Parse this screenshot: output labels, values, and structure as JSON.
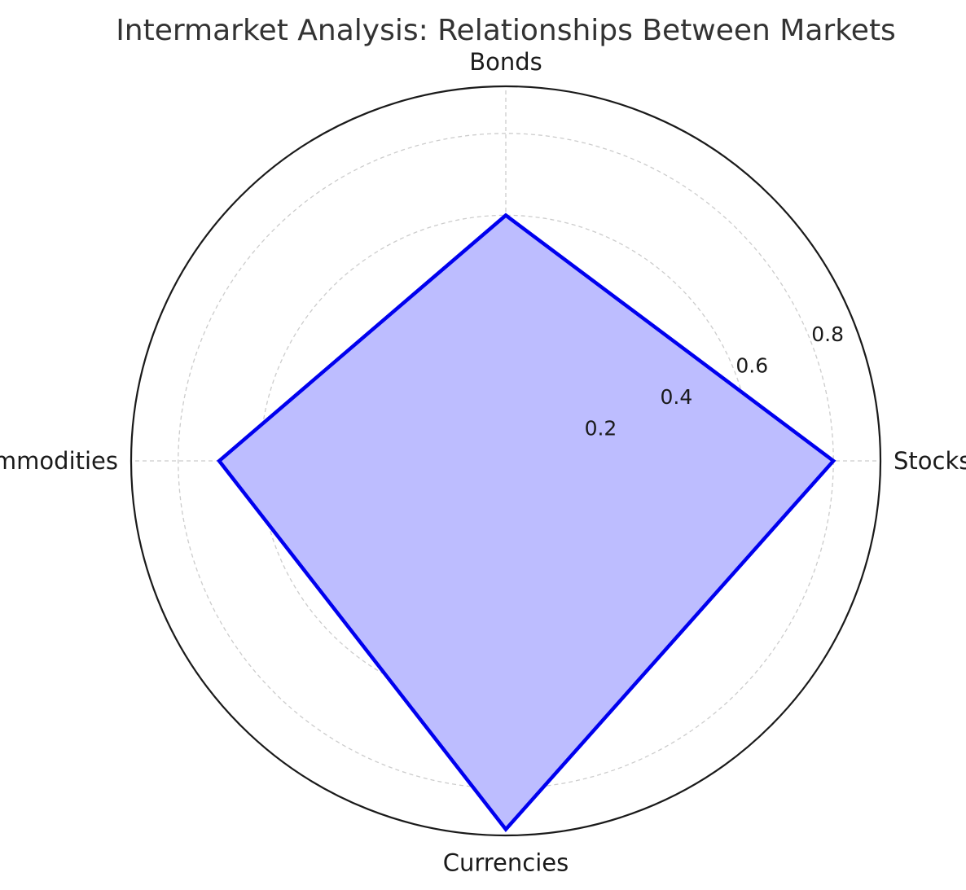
{
  "chart_data": {
    "type": "radar",
    "title": "Intermarket Analysis: Relationships Between Markets",
    "categories": [
      "Stocks",
      "Bonds",
      "Commodities",
      "Currencies"
    ],
    "series": [
      {
        "values": [
          0.8,
          0.6,
          0.7,
          0.9
        ],
        "line_color": "#0000ee",
        "fill_color": "#bdbdff"
      }
    ],
    "radial_ticks": [
      "0.2",
      "0.4",
      "0.6",
      "0.8"
    ],
    "radial_tick_values": [
      0.2,
      0.4,
      0.6,
      0.8
    ],
    "rlim": [
      0,
      0.915
    ],
    "grid": true,
    "grid_color": "#cccccc",
    "frame_color": "#1a1a1a"
  }
}
